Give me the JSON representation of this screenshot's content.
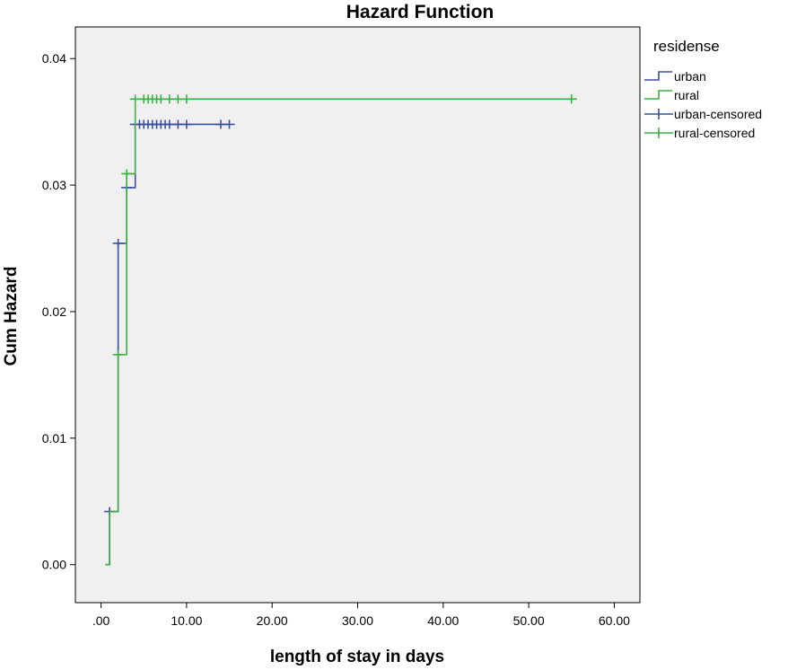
{
  "chart_data": {
    "type": "line",
    "title": "Hazard Function",
    "xlabel": "length of stay in days",
    "ylabel": "Cum Hazard",
    "xlim": [
      -3,
      63
    ],
    "ylim": [
      -0.003,
      0.0425
    ],
    "x_ticks": [
      0,
      10,
      20,
      30,
      40,
      50,
      60
    ],
    "x_tick_labels": [
      ".00",
      "10.00",
      "20.00",
      "30.00",
      "40.00",
      "50.00",
      "60.00"
    ],
    "y_ticks": [
      0,
      0.01,
      0.02,
      0.03,
      0.04
    ],
    "y_tick_labels": [
      "0.00",
      "0.01",
      "0.02",
      "0.03",
      "0.04"
    ],
    "grid": false,
    "legend": {
      "title": "residense",
      "placement": "right",
      "entries": [
        {
          "label": "urban",
          "kind": "step",
          "color": "#3a4fa0"
        },
        {
          "label": "rural",
          "kind": "step",
          "color": "#3cb043"
        },
        {
          "label": "urban-censored",
          "kind": "censor",
          "color": "#3a4fa0"
        },
        {
          "label": "rural-censored",
          "kind": "censor",
          "color": "#3cb043"
        }
      ]
    },
    "series": [
      {
        "name": "urban",
        "color": "#3a4fa0",
        "steps": [
          [
            0.5,
            0
          ],
          [
            1,
            0.0042
          ],
          [
            2,
            0.0254
          ],
          [
            3,
            0.0298
          ],
          [
            4,
            0.0348
          ],
          [
            15,
            0.0348
          ]
        ],
        "censored": [
          [
            1,
            0.0042
          ],
          [
            2,
            0.0254
          ],
          [
            3,
            0.0298
          ],
          [
            4,
            0.0348
          ],
          [
            4.5,
            0.0348
          ],
          [
            5,
            0.0348
          ],
          [
            5.5,
            0.0348
          ],
          [
            6,
            0.0348
          ],
          [
            6.5,
            0.0348
          ],
          [
            7,
            0.0348
          ],
          [
            7.5,
            0.0348
          ],
          [
            8,
            0.0348
          ],
          [
            9,
            0.0348
          ],
          [
            10,
            0.0348
          ],
          [
            14,
            0.0348
          ],
          [
            15,
            0.0348
          ]
        ]
      },
      {
        "name": "rural",
        "color": "#3cb043",
        "steps": [
          [
            0.5,
            0
          ],
          [
            1,
            0.0042
          ],
          [
            2,
            0.0166
          ],
          [
            3,
            0.0309
          ],
          [
            4,
            0.0368
          ],
          [
            55,
            0.0368
          ]
        ],
        "censored": [
          [
            2,
            0.0166
          ],
          [
            3,
            0.0309
          ],
          [
            4,
            0.0368
          ],
          [
            5,
            0.0368
          ],
          [
            5.5,
            0.0368
          ],
          [
            6,
            0.0368
          ],
          [
            6.5,
            0.0368
          ],
          [
            7,
            0.0368
          ],
          [
            8,
            0.0368
          ],
          [
            9,
            0.0368
          ],
          [
            10,
            0.0368
          ],
          [
            55,
            0.0368
          ]
        ]
      }
    ]
  }
}
